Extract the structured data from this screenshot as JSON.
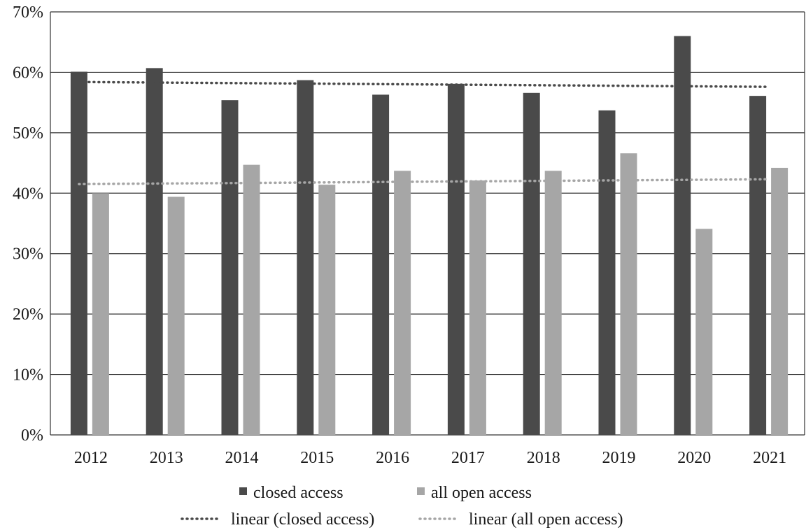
{
  "chart_data": {
    "type": "bar",
    "categories": [
      "2012",
      "2013",
      "2014",
      "2015",
      "2016",
      "2017",
      "2018",
      "2019",
      "2020",
      "2021"
    ],
    "series": [
      {
        "name": "closed access",
        "color": "#4a4a4a",
        "values": [
          60.1,
          60.7,
          55.4,
          58.7,
          56.3,
          58.1,
          56.6,
          53.7,
          66.0,
          56.1
        ]
      },
      {
        "name": "all open access",
        "color": "#a6a6a6",
        "values": [
          40.0,
          39.4,
          44.7,
          41.4,
          43.7,
          42.1,
          43.7,
          46.6,
          34.1,
          44.2
        ]
      }
    ],
    "trendlines": [
      {
        "name": "linear (closed access)",
        "color": "#4a4a4a",
        "start": 58.4,
        "end": 57.6,
        "style": "dotted"
      },
      {
        "name": "linear (all open access)",
        "color": "#a6a6a6",
        "start": 41.5,
        "end": 42.3,
        "style": "dotted"
      }
    ],
    "ylim": [
      0,
      70
    ],
    "yticks": [
      "0%",
      "10%",
      "20%",
      "30%",
      "40%",
      "50%",
      "60%",
      "70%"
    ],
    "grid": true,
    "legend_position": "bottom",
    "title": "",
    "xlabel": "",
    "ylabel": ""
  }
}
